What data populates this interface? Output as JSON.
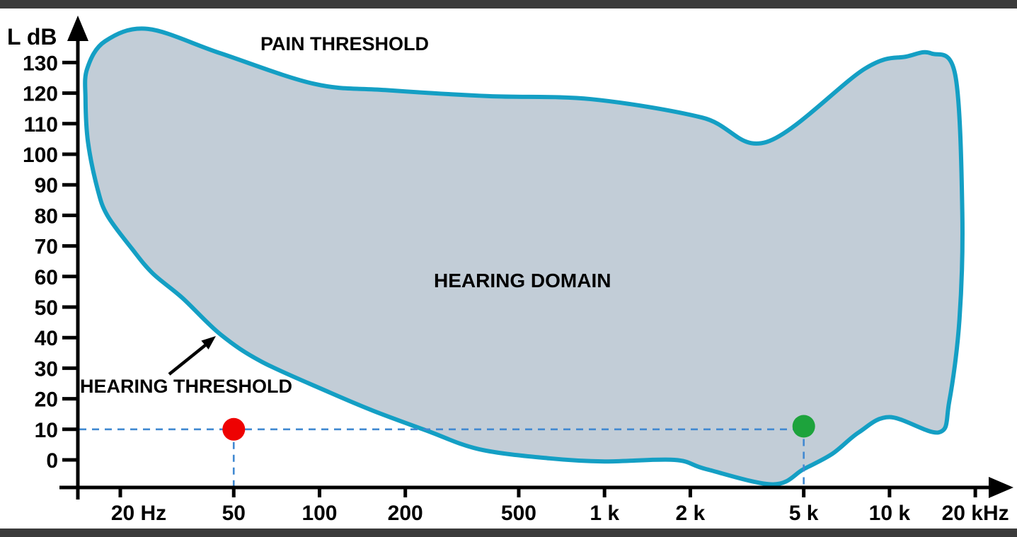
{
  "chart_data": {
    "type": "area",
    "title": "",
    "x_scale": "log",
    "x_unit": "Hz",
    "x_range": [
      20,
      20000
    ],
    "y_axis_label": "L dB",
    "y_range": [
      0,
      130
    ],
    "y_tick_step": 10,
    "grid": false,
    "x_ticks": [
      {
        "f": 20,
        "label": "20 Hz",
        "dx": 26
      },
      {
        "f": 50,
        "label": "50",
        "dx": 0
      },
      {
        "f": 100,
        "label": "100",
        "dx": 0
      },
      {
        "f": 200,
        "label": "200",
        "dx": 0
      },
      {
        "f": 500,
        "label": "500",
        "dx": 0
      },
      {
        "f": 1000,
        "label": "1 k",
        "dx": 0
      },
      {
        "f": 2000,
        "label": "2 k",
        "dx": 0
      },
      {
        "f": 5000,
        "label": "5 k",
        "dx": 0
      },
      {
        "f": 10000,
        "label": "10 k",
        "dx": 0
      },
      {
        "f": 20000,
        "label": "20 kHz",
        "dx": 0
      }
    ],
    "y_ticks": [
      {
        "db": 0,
        "label": "0"
      },
      {
        "db": 10,
        "label": "10"
      },
      {
        "db": 20,
        "label": "20"
      },
      {
        "db": 30,
        "label": "30"
      },
      {
        "db": 40,
        "label": "40"
      },
      {
        "db": 50,
        "label": "50"
      },
      {
        "db": 60,
        "label": "60"
      },
      {
        "db": 70,
        "label": "70"
      },
      {
        "db": 80,
        "label": "80"
      },
      {
        "db": 90,
        "label": "90"
      },
      {
        "db": 100,
        "label": "100"
      },
      {
        "db": 110,
        "label": "110"
      },
      {
        "db": 120,
        "label": "120"
      },
      {
        "db": 130,
        "label": "130"
      }
    ],
    "annotations": {
      "pain_threshold": "PAIN THRESHOLD",
      "hearing_domain": "HEARING DOMAIN",
      "hearing_threshold": "HEARING THRESHOLD"
    },
    "domain_boundary_f_db": [
      [
        25,
        141
      ],
      [
        45,
        133
      ],
      [
        96,
        123
      ],
      [
        170,
        121
      ],
      [
        392,
        119
      ],
      [
        900,
        118
      ],
      [
        2200,
        112
      ],
      [
        3700,
        104
      ],
      [
        8200,
        128
      ],
      [
        11500,
        132
      ],
      [
        14000,
        133
      ],
      [
        17000,
        126
      ],
      [
        18000,
        81
      ],
      [
        17600,
        46
      ],
      [
        16200,
        19
      ],
      [
        14900,
        9
      ],
      [
        10000,
        14
      ],
      [
        7800,
        9
      ],
      [
        6300,
        2
      ],
      [
        5000,
        -3
      ],
      [
        3900,
        -8
      ],
      [
        2270,
        -3
      ],
      [
        1760,
        0
      ],
      [
        1000,
        -0.5
      ],
      [
        640,
        0.5
      ],
      [
        363,
        3.5
      ],
      [
        239,
        9.5
      ],
      [
        155,
        16
      ],
      [
        109,
        22
      ],
      [
        63,
        32
      ],
      [
        45,
        41
      ],
      [
        33,
        53
      ],
      [
        26,
        61
      ],
      [
        22,
        69
      ],
      [
        18,
        80
      ],
      [
        16.6,
        89
      ],
      [
        15.4,
        104
      ],
      [
        15.1,
        118
      ],
      [
        15.3,
        128
      ],
      [
        17.7,
        137
      ]
    ],
    "markers": [
      {
        "name": "red-marker",
        "f": 50,
        "db": 10,
        "color": "#ee0202"
      },
      {
        "name": "green-marker",
        "f": 5000,
        "db": 11,
        "color": "#1da33c"
      }
    ],
    "guide_level_db": 10,
    "legend": "none",
    "colors": {
      "outline": "#149fc4",
      "fill": "#c2cdd7",
      "guide": "#4189d1",
      "axis": "#000000",
      "text": "#000000"
    }
  }
}
